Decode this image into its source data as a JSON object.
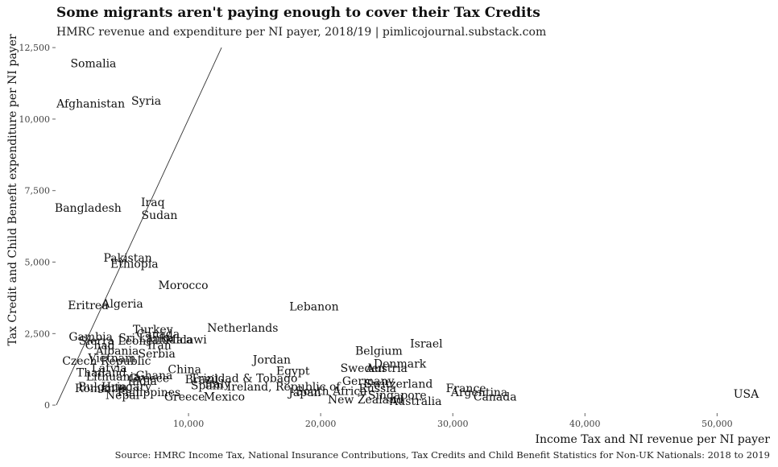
{
  "chart_data": {
    "type": "scatter",
    "title": "Some migrants aren't paying enough to cover their Tax Credits",
    "subtitle": "HMRC revenue and expenditure per NI payer, 2018/19 | pimlicojournal.substack.com",
    "caption": "Source: HMRC Income Tax, National Insurance Contributions, Tax Credits and Child Benefit Statistics for Non-UK Nationals: 2018 to 2019",
    "xlabel": "Income Tax and NI revenue per NI payer",
    "ylabel": "Tax Credit and Child Benefit expenditure per NI payer",
    "xlim": [
      0,
      54000
    ],
    "ylim": [
      -250,
      12700
    ],
    "x_ticks": [
      10000,
      20000,
      30000,
      40000,
      50000
    ],
    "y_ticks": [
      0,
      2500,
      5000,
      7500,
      10000,
      12500
    ],
    "x_tick_labels": [
      "10,000",
      "20,000",
      "30,000",
      "40,000",
      "50,000"
    ],
    "y_tick_labels": [
      "0",
      "2,500",
      "5,000",
      "7,500",
      "10,000",
      "12,500"
    ],
    "grid": false,
    "reference_line": {
      "x": [
        0,
        12500
      ],
      "y": [
        0,
        12500
      ]
    },
    "points": [
      {
        "label": "Somalia",
        "x": 2800,
        "y": 11950
      },
      {
        "label": "Afghanistan",
        "x": 2600,
        "y": 10550
      },
      {
        "label": "Syria",
        "x": 6800,
        "y": 10650
      },
      {
        "label": "Bangladesh",
        "x": 2400,
        "y": 6900
      },
      {
        "label": "Iraq",
        "x": 7300,
        "y": 7100
      },
      {
        "label": "Sudan",
        "x": 7800,
        "y": 6650
      },
      {
        "label": "Pakistan",
        "x": 5400,
        "y": 5150
      },
      {
        "label": "Ethiopia",
        "x": 5900,
        "y": 4950
      },
      {
        "label": "Morocco",
        "x": 9600,
        "y": 4200
      },
      {
        "label": "Eritrea",
        "x": 2400,
        "y": 3500
      },
      {
        "label": "Algeria",
        "x": 5000,
        "y": 3550
      },
      {
        "label": "Lebanon",
        "x": 19500,
        "y": 3450
      },
      {
        "label": "Netherlands",
        "x": 14100,
        "y": 2700
      },
      {
        "label": "Turkey",
        "x": 7300,
        "y": 2650
      },
      {
        "label": "Gambia",
        "x": 2600,
        "y": 2400
      },
      {
        "label": "Canada",
        "x": 7700,
        "y": 2500
      },
      {
        "label": "Malawi",
        "x": 9800,
        "y": 2300
      },
      {
        "label": "Sri Lanka",
        "x": 6800,
        "y": 2350
      },
      {
        "label": "Sierra Leone",
        "x": 4500,
        "y": 2250
      },
      {
        "label": "Chad",
        "x": 3300,
        "y": 2100
      },
      {
        "label": "Albania",
        "x": 4600,
        "y": 1900
      },
      {
        "label": "Serbia",
        "x": 7600,
        "y": 1800
      },
      {
        "label": "Czech Republic",
        "x": 3800,
        "y": 1550
      },
      {
        "label": "Vietnam",
        "x": 4200,
        "y": 1650
      },
      {
        "label": "Jordan",
        "x": 16300,
        "y": 1600
      },
      {
        "label": "Belgium",
        "x": 24400,
        "y": 1900
      },
      {
        "label": "Israel",
        "x": 28000,
        "y": 2150
      },
      {
        "label": "Denmark",
        "x": 26000,
        "y": 1450
      },
      {
        "label": "Sweden",
        "x": 23200,
        "y": 1300
      },
      {
        "label": "Austria",
        "x": 25000,
        "y": 1300
      },
      {
        "label": "Egypt",
        "x": 17900,
        "y": 1200
      },
      {
        "label": "Thailand",
        "x": 3400,
        "y": 1150
      },
      {
        "label": "Latvia",
        "x": 4000,
        "y": 1300
      },
      {
        "label": "China",
        "x": 9700,
        "y": 1250
      },
      {
        "label": "Trinidad & Tobago",
        "x": 14200,
        "y": 950
      },
      {
        "label": "Lithuania",
        "x": 4300,
        "y": 1000
      },
      {
        "label": "Greece",
        "x": 7000,
        "y": 950
      },
      {
        "label": "Germany",
        "x": 23600,
        "y": 850
      },
      {
        "label": "Switzerland",
        "x": 25900,
        "y": 750
      },
      {
        "label": "Russia",
        "x": 24300,
        "y": 600
      },
      {
        "label": "Ireland, Republic of",
        "x": 17200,
        "y": 650
      },
      {
        "label": "France",
        "x": 31000,
        "y": 600
      },
      {
        "label": "Bulgaria",
        "x": 3500,
        "y": 650
      },
      {
        "label": "Romania",
        "x": 3300,
        "y": 600
      },
      {
        "label": "Hungary",
        "x": 5300,
        "y": 650
      },
      {
        "label": "South Africa",
        "x": 20800,
        "y": 500
      },
      {
        "label": "Japan",
        "x": 18800,
        "y": 450
      },
      {
        "label": "Argentina",
        "x": 32000,
        "y": 450
      },
      {
        "label": "Singapore",
        "x": 25800,
        "y": 350
      },
      {
        "label": "Nepal",
        "x": 5000,
        "y": 350
      },
      {
        "label": "Philippines",
        "x": 7000,
        "y": 450
      },
      {
        "label": "Greece",
        "x": 9700,
        "y": 300
      },
      {
        "label": "Mexico",
        "x": 12700,
        "y": 300
      },
      {
        "label": "Canada",
        "x": 33200,
        "y": 300
      },
      {
        "label": "New Zealand",
        "x": 23400,
        "y": 200
      },
      {
        "label": "Australia",
        "x": 27200,
        "y": 150
      },
      {
        "label": "USA",
        "x": 52200,
        "y": 400
      },
      {
        "label": "Spain",
        "x": 11400,
        "y": 700
      },
      {
        "label": "Italy",
        "x": 12200,
        "y": 750
      },
      {
        "label": "Brazil",
        "x": 11000,
        "y": 900
      },
      {
        "label": "Ghana",
        "x": 7400,
        "y": 1050
      },
      {
        "label": "India",
        "x": 6500,
        "y": 850
      },
      {
        "label": "Iran",
        "x": 7800,
        "y": 2100
      },
      {
        "label": "Jamaica",
        "x": 8600,
        "y": 2300
      }
    ]
  }
}
